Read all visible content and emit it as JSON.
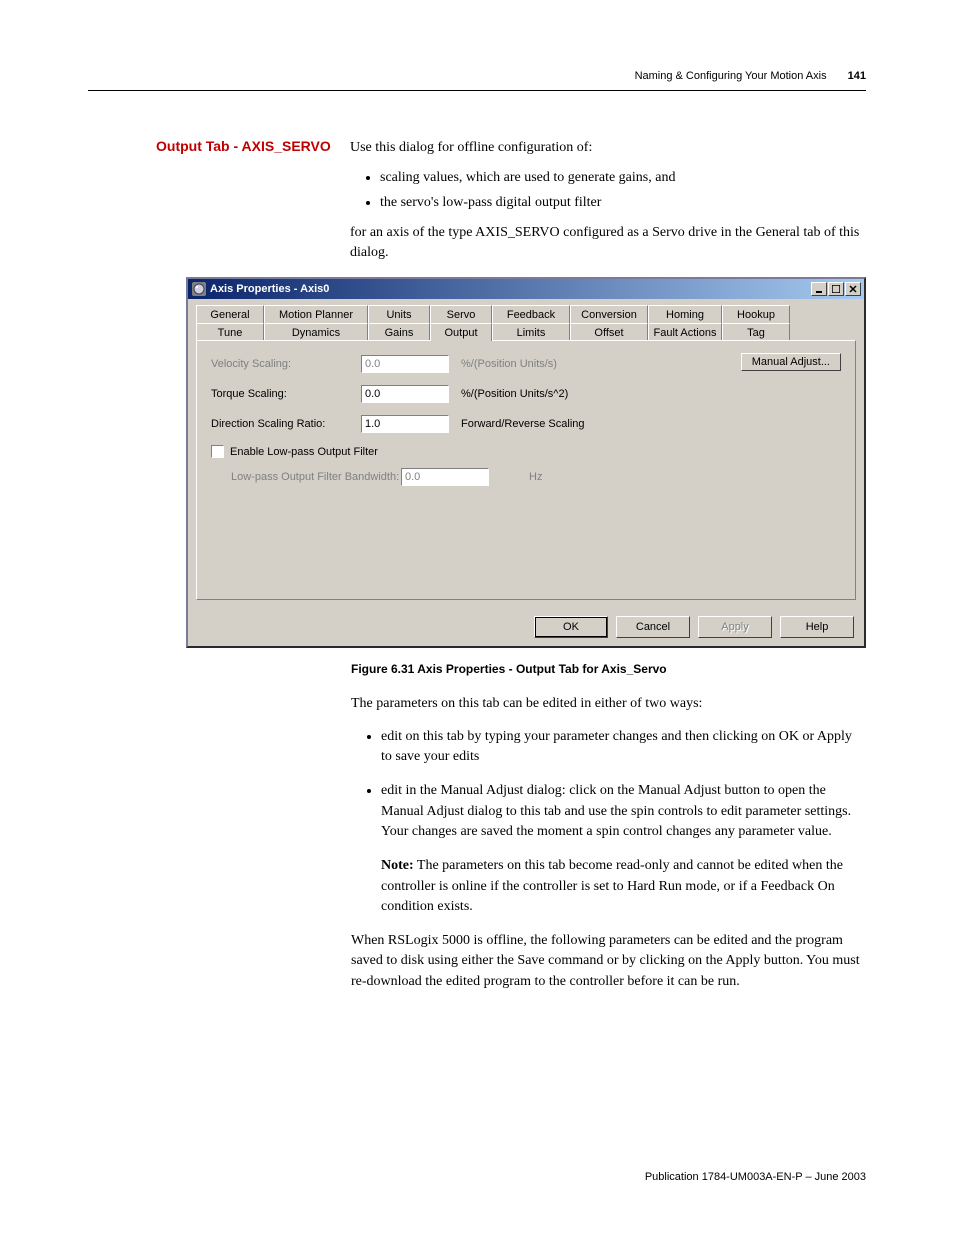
{
  "header": {
    "chapter": "Naming & Configuring Your Motion Axis",
    "page_number": "141"
  },
  "section": {
    "heading": "Output Tab - AXIS_SERVO",
    "intro_line": "Use this dialog for offline configuration of:",
    "bullets": [
      "scaling values, which are used to generate gains, and",
      "the servo's low-pass digital output filter"
    ],
    "post_bullets": "for an axis of the type AXIS_SERVO configured as a Servo drive in the General tab of this dialog."
  },
  "dialog": {
    "title": "Axis Properties - Axis0",
    "tabs_row1": [
      "General",
      "Motion Planner",
      "Units",
      "Servo",
      "Feedback",
      "Conversion",
      "Homing",
      "Hookup"
    ],
    "tabs_row2": [
      "Tune",
      "Dynamics",
      "Gains",
      "Output",
      "Limits",
      "Offset",
      "Fault Actions",
      "Tag"
    ],
    "active_tab": "Output",
    "manual_adjust_label": "Manual Adjust...",
    "fields": {
      "velocity_scaling": {
        "label": "Velocity Scaling:",
        "value": "0.0",
        "unit": "%/(Position Units/s)",
        "enabled": false
      },
      "torque_scaling": {
        "label": "Torque Scaling:",
        "value": "0.0",
        "unit": "%/(Position Units/s^2)",
        "enabled": true
      },
      "direction_ratio": {
        "label": "Direction Scaling Ratio:",
        "value": "1.0",
        "unit": "Forward/Reverse Scaling",
        "enabled": true
      },
      "enable_lowpass": {
        "label": "Enable Low-pass Output Filter",
        "checked": false
      },
      "lowpass_bandwidth": {
        "label": "Low-pass Output Filter Bandwidth:",
        "value": "0.0",
        "unit": "Hz",
        "enabled": false
      }
    },
    "buttons": {
      "ok": "OK",
      "cancel": "Cancel",
      "apply": "Apply",
      "help": "Help"
    }
  },
  "figure_caption": "Figure 6.31 Axis Properties - Output Tab for Axis_Servo",
  "body": {
    "para1": "The parameters on this tab can be edited in either of two ways:",
    "bullets": [
      "edit on this tab by typing your parameter changes and then clicking on OK or Apply to save your edits",
      "edit in the Manual Adjust dialog: click on the Manual Adjust button to open the Manual Adjust dialog to this tab and use the spin controls to edit parameter settings. Your changes are saved the moment a spin control changes any parameter value."
    ],
    "note_label": "Note:",
    "note_text": " The parameters on this tab become read-only and cannot be edited when the controller is online if the controller is set to Hard Run mode, or if a Feedback On condition exists.",
    "para2": "When RSLogix 5000 is offline, the following parameters can be edited and the program saved to disk using either the Save command or by clicking on the Apply button. You must re-download the edited program to the controller before it can be run."
  },
  "footer": {
    "publication": "Publication 1784-UM003A-EN-P – June 2003"
  },
  "colors": {
    "heading_red": "#c00000",
    "titlebar_left": "#0a246a",
    "titlebar_right": "#a6caf0",
    "win_bg": "#d4d0c8"
  },
  "tab_widths_row1": [
    68,
    104,
    62,
    62,
    78,
    78,
    74,
    68
  ],
  "tab_widths_row2": [
    68,
    104,
    62,
    62,
    78,
    78,
    74,
    68
  ]
}
